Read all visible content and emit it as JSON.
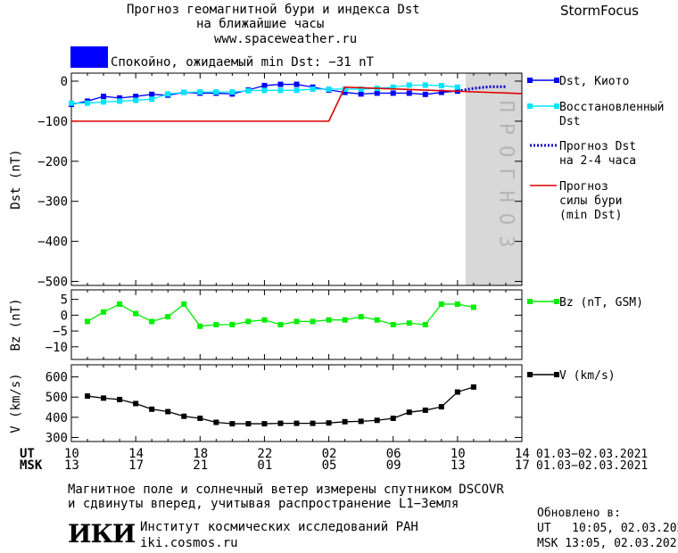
{
  "header": {
    "title_line1": "Прогноз геомагнитной бури и индекса Dst",
    "title_line2": "на ближайшие часы",
    "url": "www.spaceweather.ru",
    "brand": "StormFocus",
    "status_text": "Спокойно, ожидаемый min Dst: −31 nT",
    "status_color": "#0000ff"
  },
  "forecast_band_text": "ПРОГНОЗ",
  "time_axis": {
    "ut_label": "UT",
    "msk_label": "MSK",
    "ut_ticks": [
      "10",
      "14",
      "18",
      "22",
      "02",
      "06",
      "10",
      "14"
    ],
    "msk_ticks": [
      "13",
      "17",
      "21",
      "01",
      "05",
      "09",
      "13",
      "17"
    ],
    "ut_range": "01.03−02.03.2021",
    "msk_range": "01.03−02.03.2021"
  },
  "chart_data": [
    {
      "type": "line",
      "ylabel": "Dst (nT)",
      "ylim": [
        -510,
        20
      ],
      "yticks": [
        0,
        -100,
        -200,
        -300,
        -400,
        -500
      ],
      "xlim": [
        0,
        28
      ],
      "forecast_region": [
        24.5,
        28
      ],
      "series": [
        {
          "name": "Dst, Киото",
          "color": "#0000ff",
          "x": [
            0,
            1,
            2,
            3,
            4,
            5,
            6,
            7,
            8,
            9,
            10,
            11,
            12,
            13,
            14,
            15,
            16,
            17,
            18,
            19,
            20,
            21,
            22,
            23,
            24
          ],
          "values": [
            -58,
            -50,
            -38,
            -42,
            -38,
            -33,
            -35,
            -28,
            -30,
            -30,
            -32,
            -22,
            -11,
            -8,
            -8,
            -15,
            -22,
            -28,
            -32,
            -30,
            -30,
            -30,
            -33,
            -28,
            -25
          ]
        },
        {
          "name": "Восстановленный Dst",
          "color": "#00e5ff",
          "x": [
            0,
            1,
            2,
            3,
            4,
            5,
            6,
            7,
            8,
            9,
            10,
            11,
            12,
            13,
            14,
            15,
            16,
            17,
            18,
            19,
            20,
            21,
            22,
            23,
            24
          ],
          "values": [
            -55,
            -55,
            -52,
            -50,
            -48,
            -45,
            -32,
            -28,
            -27,
            -27,
            -27,
            -24,
            -23,
            -23,
            -23,
            -20,
            -20,
            -20,
            -20,
            -18,
            -15,
            -10,
            -10,
            -11,
            -15
          ]
        },
        {
          "name": "Прогноз Dst на 2-4 часа",
          "color": "#0000cc",
          "x": [
            24,
            25,
            26,
            27
          ],
          "values": [
            -25,
            -18,
            -14,
            -14
          ]
        },
        {
          "name": "Прогноз силы бури (min Dst)",
          "color": "#e00000",
          "x": [
            0,
            16,
            17,
            28
          ],
          "values": [
            -100,
            -100,
            -15,
            -31
          ]
        }
      ]
    },
    {
      "type": "line",
      "ylabel": "Bz (nT)",
      "ylim": [
        -14,
        8
      ],
      "yticks": [
        5,
        0,
        -5,
        -10
      ],
      "series": [
        {
          "name": "Bz (nT, GSM)",
          "color": "#00ee00",
          "x": [
            1,
            2,
            3,
            4,
            5,
            6,
            7,
            8,
            9,
            10,
            11,
            12,
            13,
            14,
            15,
            16,
            17,
            18,
            19,
            20,
            21,
            22,
            23,
            24,
            25
          ],
          "values": [
            -2,
            1,
            3.5,
            0.5,
            -2,
            -0.5,
            3.5,
            -3.5,
            -3,
            -3,
            -2,
            -1.5,
            -3,
            -2,
            -2,
            -1.5,
            -1.5,
            -0.5,
            -1.5,
            -3,
            -2.5,
            -3,
            3.5,
            3.5,
            2.5
          ]
        }
      ]
    },
    {
      "type": "line",
      "ylabel": "V (km/s)",
      "ylim": [
        280,
        660
      ],
      "yticks": [
        600,
        500,
        400,
        300
      ],
      "series": [
        {
          "name": "V (km/s)",
          "color": "#000000",
          "x": [
            1,
            2,
            3,
            4,
            5,
            6,
            7,
            8,
            9,
            10,
            11,
            12,
            13,
            14,
            15,
            16,
            17,
            18,
            19,
            20,
            21,
            22,
            23,
            24,
            25
          ],
          "values": [
            505,
            495,
            488,
            468,
            440,
            428,
            405,
            395,
            375,
            368,
            368,
            368,
            370,
            370,
            370,
            372,
            378,
            380,
            385,
            395,
            425,
            435,
            452,
            525,
            550
          ]
        }
      ]
    }
  ],
  "footer": {
    "line1": "Магнитное поле и солнечный ветер измерены спутником DSCOVR",
    "line2": "и сдвинуты вперед, учитывая распространение L1−Земля",
    "logo_text": "ИКИ",
    "institute": "Институт космических исследований РАН",
    "site": "iki.cosmos.ru",
    "updated_label": "Обновлено в:",
    "updated_ut": "UT   10:05, 02.03.2021",
    "updated_msk": "MSK 13:05, 02.03.2021"
  }
}
